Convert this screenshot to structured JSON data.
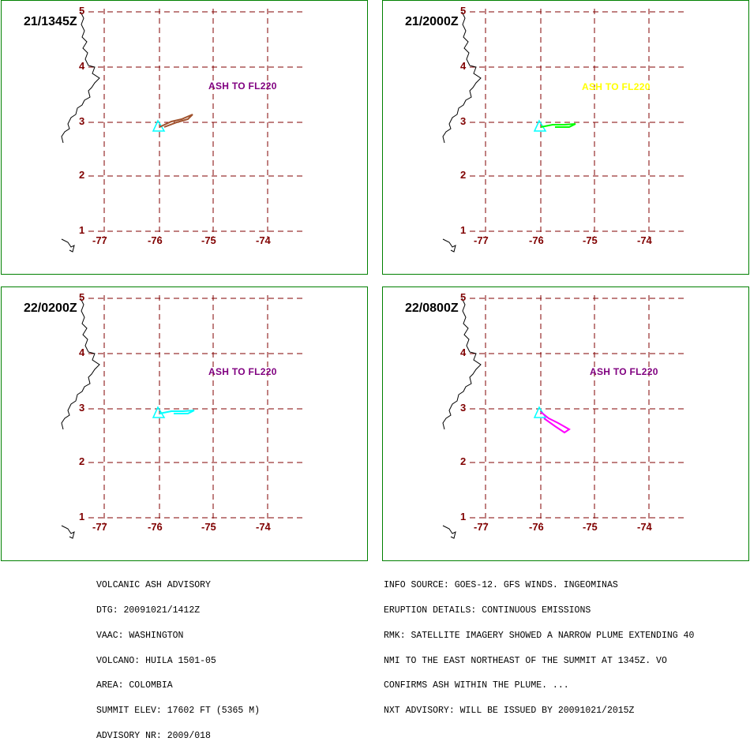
{
  "colors": {
    "grid": "#800000",
    "border": "#008000",
    "volcano": "#00ffff",
    "ash_text_default": "#800080",
    "ash_text_yellow": "#ffff00"
  },
  "axes": {
    "lon_ticks": [
      "-77",
      "-76",
      "-75",
      "-74"
    ],
    "lat_ticks": [
      "5",
      "4",
      "3",
      "2",
      "1"
    ]
  },
  "panels": [
    {
      "time": "21/1345Z",
      "ash_label": "ASH TO FL220",
      "ash_color": "#800080",
      "plume_color": "#a0522d",
      "plume": "northeast"
    },
    {
      "time": "21/2000Z",
      "ash_label": "ASH TO FL220",
      "ash_color": "#ffff00",
      "plume_color": "#00ff00",
      "plume": "east"
    },
    {
      "time": "22/0200Z",
      "ash_label": "ASH TO FL220",
      "ash_color": "#800080",
      "plume_color": "#00ffff",
      "plume": "east"
    },
    {
      "time": "22/0800Z",
      "ash_label": "ASH TO FL220",
      "ash_color": "#800080",
      "plume_color": "#ff00ff",
      "plume": "southeast"
    }
  ],
  "advisory_left": [
    "VOLCANIC ASH ADVISORY",
    "DTG: 20091021/1412Z",
    "VAAC: WASHINGTON",
    "VOLCANO: HUILA 1501-05",
    "AREA: COLOMBIA",
    "SUMMIT ELEV: 17602 FT (5365 M)",
    "ADVISORY NR: 2009/018"
  ],
  "advisory_right": [
    "INFO SOURCE: GOES-12. GFS WINDS. INGEOMINAS",
    "ERUPTION DETAILS: CONTINUOUS EMISSIONS",
    "RMK: SATELLITE IMAGERY SHOWED A NARROW PLUME EXTENDING 40",
    "NMI TO THE EAST NORTHEAST OF THE SUMMIT AT 1345Z. VO",
    "CONFIRMS ASH WITHIN THE PLUME. ...",
    "NXT ADVISORY: WILL BE ISSUED BY 20091021/2015Z"
  ]
}
